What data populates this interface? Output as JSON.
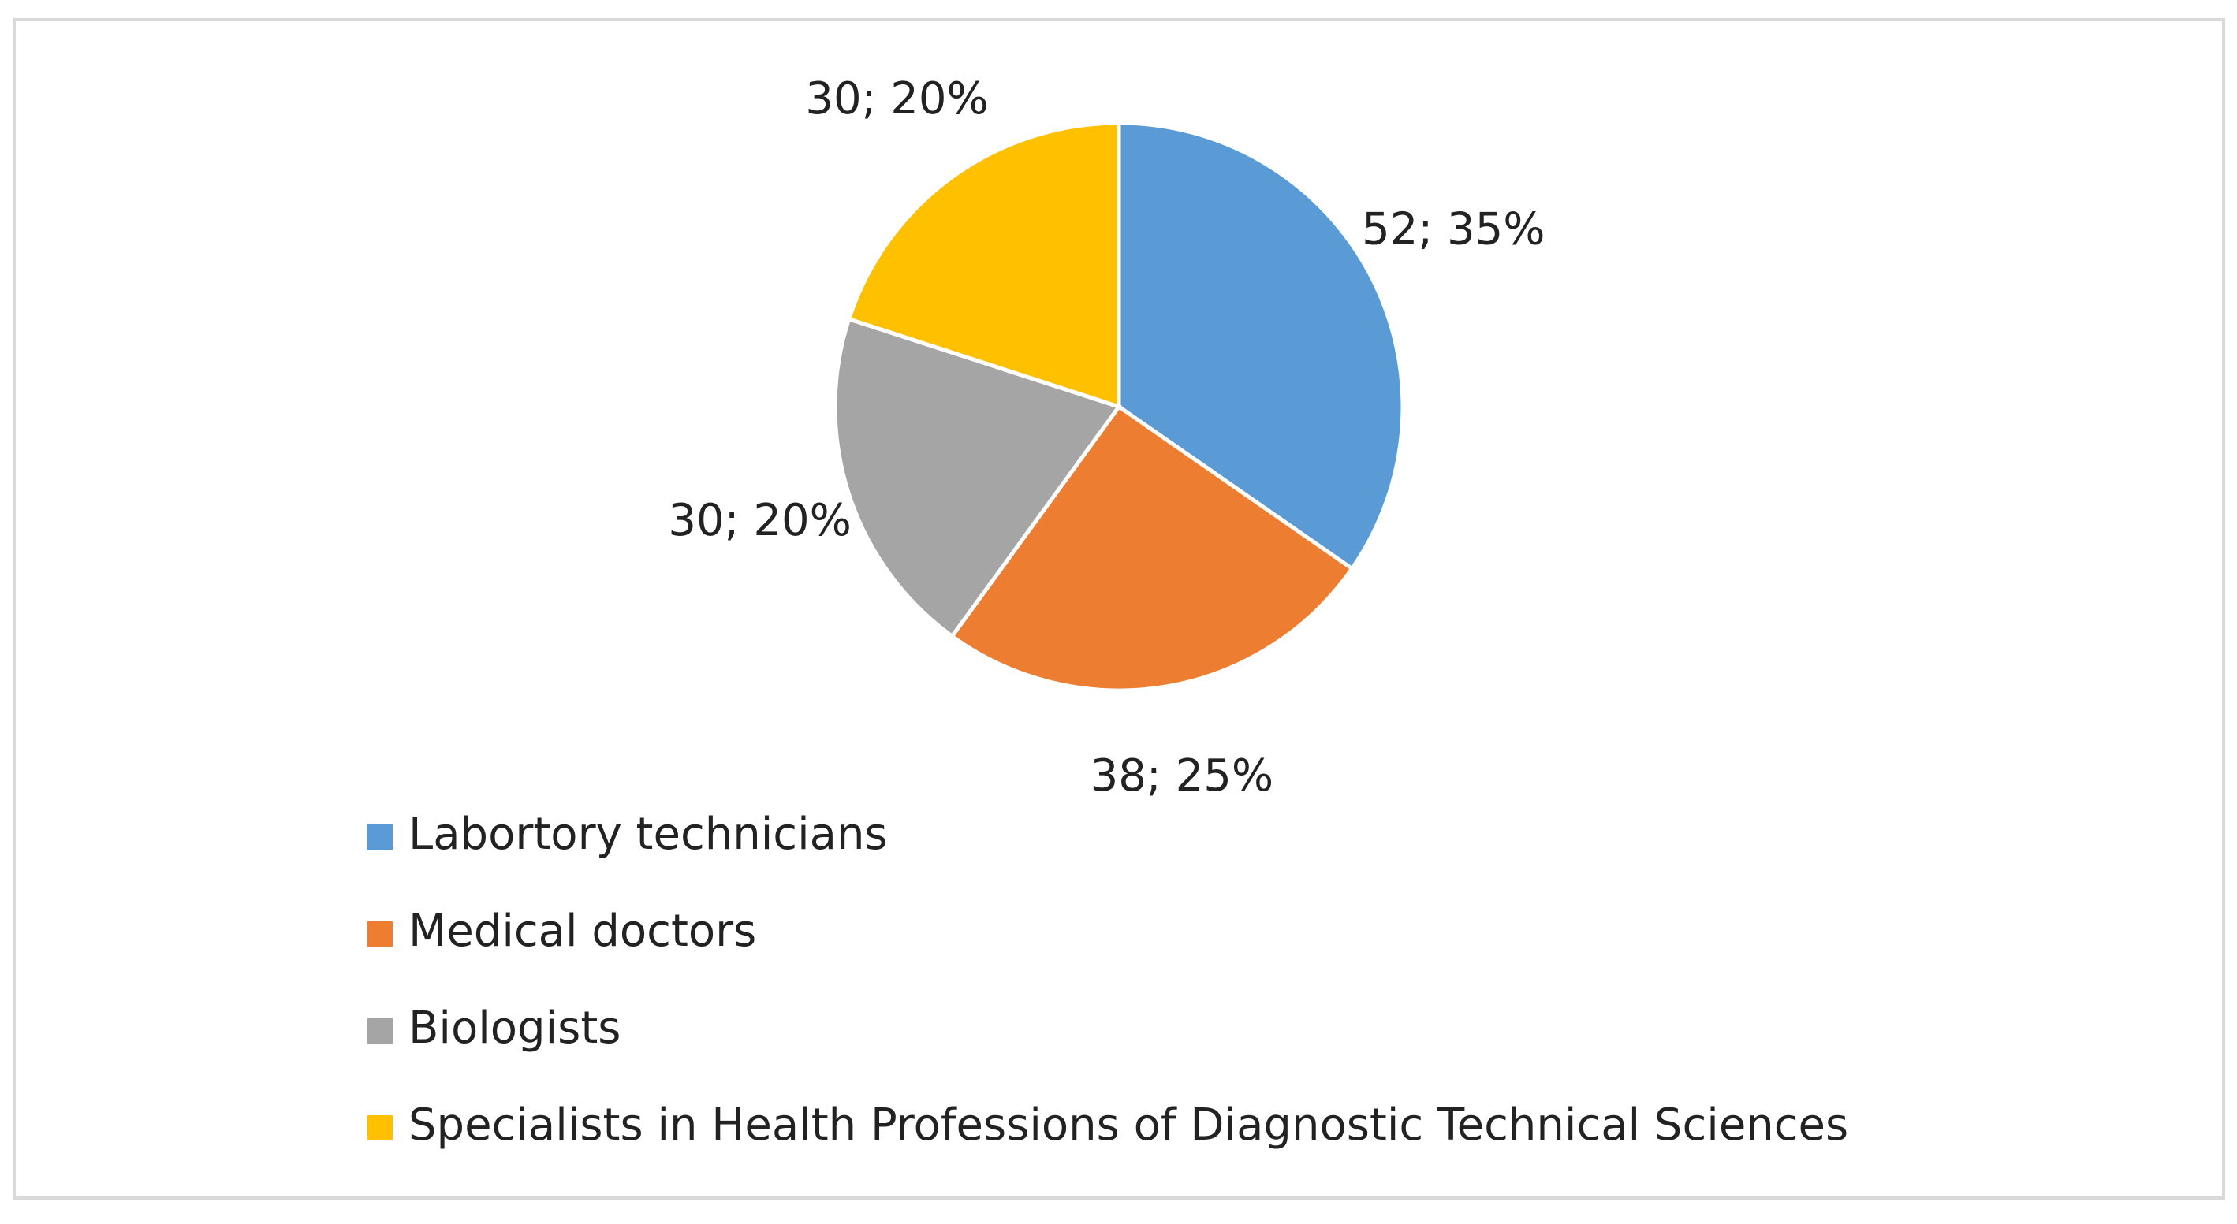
{
  "chart_data": {
    "type": "pie",
    "categories": [
      "Labortory technicians",
      "Medical doctors",
      "Biologists",
      "Specialists in Health Professions of Diagnostic Technical Sciences"
    ],
    "values": [
      52,
      38,
      30,
      30
    ],
    "value_labels": [
      "52; 35%",
      "38; 25%",
      "30; 20%",
      "30; 20%"
    ],
    "colors": [
      "#5b9bd5",
      "#ed7d31",
      "#a5a5a5",
      "#ffc000"
    ],
    "legend": "bottom"
  }
}
